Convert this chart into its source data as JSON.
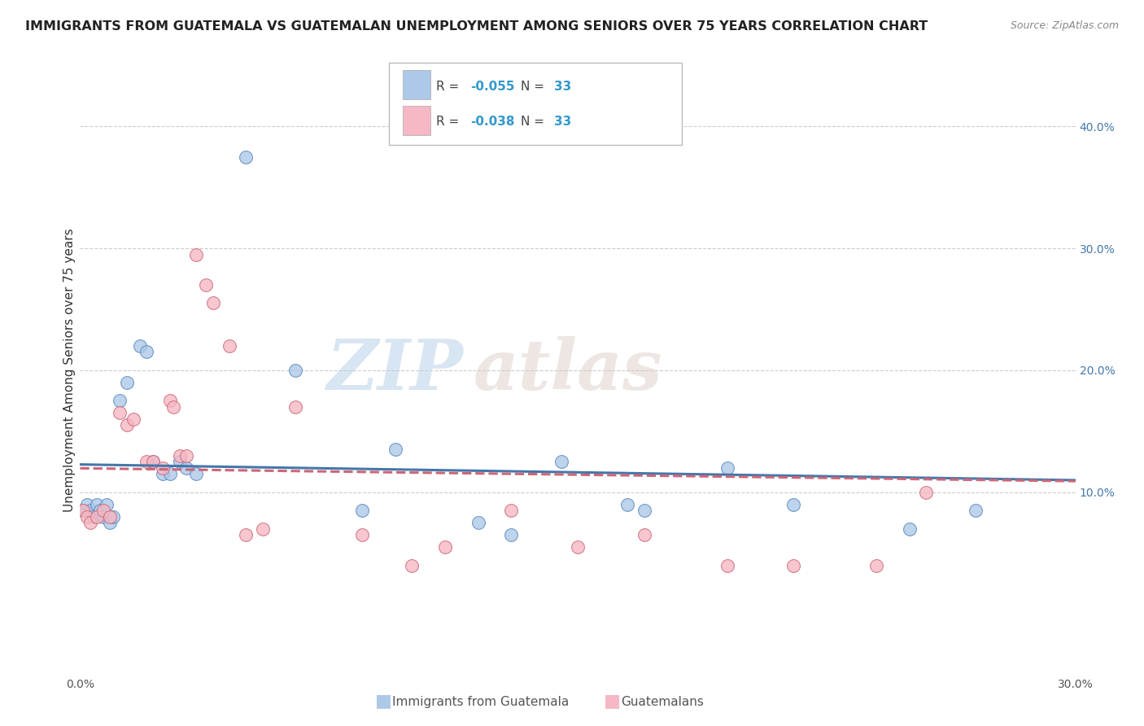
{
  "title": "IMMIGRANTS FROM GUATEMALA VS GUATEMALAN UNEMPLOYMENT AMONG SENIORS OVER 75 YEARS CORRELATION CHART",
  "source": "Source: ZipAtlas.com",
  "ylabel": "Unemployment Among Seniors over 75 years",
  "xlim": [
    0.0,
    0.3
  ],
  "ylim": [
    -0.05,
    0.45
  ],
  "right_ytick_labels": [
    "40.0%",
    "30.0%",
    "20.0%",
    "10.0%"
  ],
  "right_ytick_positions": [
    0.4,
    0.3,
    0.2,
    0.1
  ],
  "xtick_labels": [
    "0.0%",
    "30.0%"
  ],
  "xtick_positions": [
    0.0,
    0.3
  ],
  "watermark_zip": "ZIP",
  "watermark_atlas": "atlas",
  "legend_blue_label": "Immigrants from Guatemala",
  "legend_pink_label": "Guatemalans",
  "blue_R": "-0.055",
  "blue_N": "33",
  "pink_R": "-0.038",
  "pink_N": "33",
  "blue_fill_color": "#aec8e8",
  "pink_fill_color": "#f5b8c4",
  "blue_edge_color": "#5588bb",
  "pink_edge_color": "#cc6677",
  "blue_line_color": "#4477aa",
  "pink_line_color": "#cc6677",
  "grid_color": "#cccccc",
  "bg_color": "#ffffff",
  "blue_points": [
    [
      0.001,
      0.085
    ],
    [
      0.002,
      0.09
    ],
    [
      0.003,
      0.085
    ],
    [
      0.004,
      0.08
    ],
    [
      0.005,
      0.09
    ],
    [
      0.006,
      0.085
    ],
    [
      0.007,
      0.08
    ],
    [
      0.008,
      0.09
    ],
    [
      0.009,
      0.075
    ],
    [
      0.01,
      0.08
    ],
    [
      0.012,
      0.175
    ],
    [
      0.014,
      0.19
    ],
    [
      0.018,
      0.22
    ],
    [
      0.02,
      0.215
    ],
    [
      0.022,
      0.125
    ],
    [
      0.025,
      0.115
    ],
    [
      0.027,
      0.115
    ],
    [
      0.03,
      0.125
    ],
    [
      0.032,
      0.12
    ],
    [
      0.035,
      0.115
    ],
    [
      0.05,
      0.375
    ],
    [
      0.065,
      0.2
    ],
    [
      0.085,
      0.085
    ],
    [
      0.095,
      0.135
    ],
    [
      0.12,
      0.075
    ],
    [
      0.13,
      0.065
    ],
    [
      0.145,
      0.125
    ],
    [
      0.165,
      0.09
    ],
    [
      0.17,
      0.085
    ],
    [
      0.195,
      0.12
    ],
    [
      0.215,
      0.09
    ],
    [
      0.25,
      0.07
    ],
    [
      0.27,
      0.085
    ]
  ],
  "pink_points": [
    [
      0.001,
      0.085
    ],
    [
      0.002,
      0.08
    ],
    [
      0.003,
      0.075
    ],
    [
      0.005,
      0.08
    ],
    [
      0.007,
      0.085
    ],
    [
      0.009,
      0.08
    ],
    [
      0.012,
      0.165
    ],
    [
      0.014,
      0.155
    ],
    [
      0.016,
      0.16
    ],
    [
      0.02,
      0.125
    ],
    [
      0.022,
      0.125
    ],
    [
      0.025,
      0.12
    ],
    [
      0.027,
      0.175
    ],
    [
      0.028,
      0.17
    ],
    [
      0.03,
      0.13
    ],
    [
      0.032,
      0.13
    ],
    [
      0.035,
      0.295
    ],
    [
      0.038,
      0.27
    ],
    [
      0.04,
      0.255
    ],
    [
      0.045,
      0.22
    ],
    [
      0.05,
      0.065
    ],
    [
      0.055,
      0.07
    ],
    [
      0.065,
      0.17
    ],
    [
      0.085,
      0.065
    ],
    [
      0.1,
      0.04
    ],
    [
      0.11,
      0.055
    ],
    [
      0.13,
      0.085
    ],
    [
      0.15,
      0.055
    ],
    [
      0.17,
      0.065
    ],
    [
      0.195,
      0.04
    ],
    [
      0.215,
      0.04
    ],
    [
      0.24,
      0.04
    ],
    [
      0.255,
      0.1
    ]
  ],
  "title_fontsize": 11.5,
  "ylabel_fontsize": 11,
  "tick_fontsize": 10,
  "legend_fontsize": 11,
  "source_fontsize": 9
}
